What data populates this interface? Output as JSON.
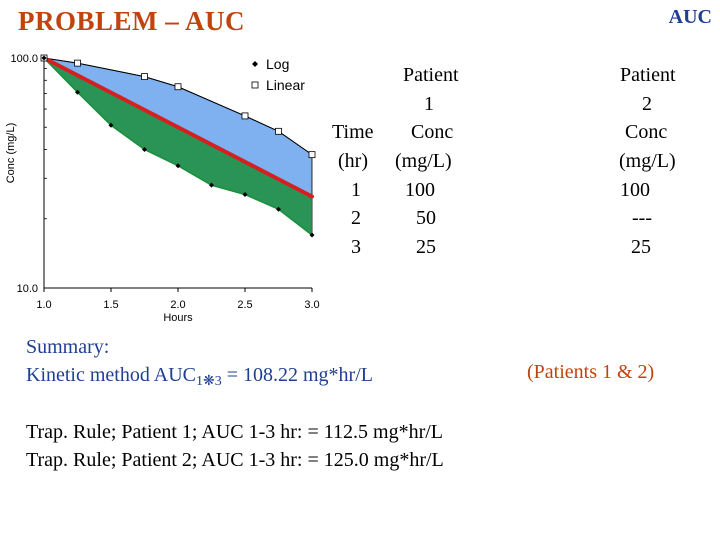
{
  "header": {
    "title": "PROBLEM – AUC",
    "corner": "AUC"
  },
  "colors": {
    "title": "#c1440e",
    "blue_text": "#1f3f8f",
    "fill": "#7fb0f0",
    "log_curve": "#1a8f3a",
    "linear_line": "#d42020"
  },
  "chart_data": {
    "type": "line",
    "xlabel": "Hours",
    "ylabel": "Conc (mg/L)",
    "xlim": [
      1.0,
      3.0
    ],
    "ylim": [
      10.0,
      100.0
    ],
    "yscale": "log",
    "x_ticks": [
      "1.0",
      "1.5",
      "2.0",
      "2.5",
      "3.0"
    ],
    "y_ticks": [
      "100.0",
      "10.0"
    ],
    "legend": {
      "position": "top-right",
      "entries": [
        "Log",
        "Linear"
      ]
    },
    "series": [
      {
        "name": "Log",
        "marker": "diamond",
        "x": [
          1.0,
          1.25,
          1.5,
          1.75,
          2.0,
          2.25,
          2.5,
          2.75,
          3.0
        ],
        "y": [
          100,
          71,
          51,
          40,
          34,
          28,
          25.5,
          22,
          17
        ]
      },
      {
        "name": "Linear",
        "marker": "square",
        "x": [
          1.0,
          1.25,
          1.75,
          2.0,
          2.5,
          2.75,
          3.0
        ],
        "y": [
          100,
          95,
          83,
          75,
          56,
          48,
          38
        ]
      }
    ],
    "red_line": {
      "x": [
        1.0,
        3.0
      ],
      "y": [
        100,
        25
      ]
    }
  },
  "table": {
    "p1_header": [
      "Patient",
      "1"
    ],
    "time_header": [
      "Time",
      "(hr)"
    ],
    "conc1_header": [
      "Conc",
      "(mg/L)"
    ],
    "times": [
      "1",
      "2",
      "3"
    ],
    "conc1": [
      "100",
      "50",
      "25"
    ],
    "p2_header": [
      "Patient",
      "2",
      "Conc",
      "(mg/L)"
    ],
    "conc2": [
      "100",
      "---",
      "25"
    ]
  },
  "summary": {
    "heading": "Summary:",
    "kinetic_prefix": "Kinetic method AUC",
    "sub_a": "1",
    "sub_mid": "❋",
    "sub_b": "3",
    "kinetic_value": " = 108.22 mg*hr/L",
    "patients": "(Patients 1 & 2)"
  },
  "trap": {
    "line1": "Trap. Rule; Patient 1; AUC 1-3 hr: = 112.5 mg*hr/L",
    "line2": "Trap. Rule; Patient 2; AUC 1-3 hr: = 125.0 mg*hr/L"
  }
}
